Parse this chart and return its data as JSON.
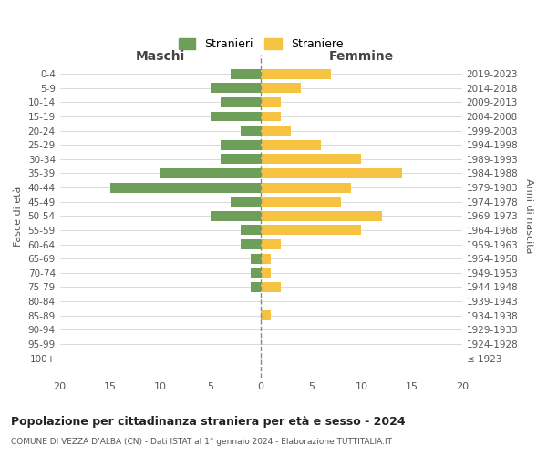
{
  "age_groups": [
    "0-4",
    "5-9",
    "10-14",
    "15-19",
    "20-24",
    "25-29",
    "30-34",
    "35-39",
    "40-44",
    "45-49",
    "50-54",
    "55-59",
    "60-64",
    "65-69",
    "70-74",
    "75-79",
    "80-84",
    "85-89",
    "90-94",
    "95-99",
    "100+"
  ],
  "birth_years": [
    "2019-2023",
    "2014-2018",
    "2009-2013",
    "2004-2008",
    "1999-2003",
    "1994-1998",
    "1989-1993",
    "1984-1988",
    "1979-1983",
    "1974-1978",
    "1969-1973",
    "1964-1968",
    "1959-1963",
    "1954-1958",
    "1949-1953",
    "1944-1948",
    "1939-1943",
    "1934-1938",
    "1929-1933",
    "1924-1928",
    "≤ 1923"
  ],
  "males": [
    3,
    5,
    4,
    5,
    2,
    4,
    4,
    10,
    15,
    3,
    5,
    2,
    2,
    1,
    1,
    1,
    0,
    0,
    0,
    0,
    0
  ],
  "females": [
    7,
    4,
    2,
    2,
    3,
    6,
    10,
    14,
    9,
    8,
    12,
    10,
    2,
    1,
    1,
    2,
    0,
    1,
    0,
    0,
    0
  ],
  "male_color": "#6d9e5a",
  "female_color": "#f5c242",
  "background_color": "#ffffff",
  "grid_color": "#cccccc",
  "title": "Popolazione per cittadinanza straniera per età e sesso - 2024",
  "subtitle": "COMUNE DI VEZZA D’ALBA (CN) - Dati ISTAT al 1° gennaio 2024 - Elaborazione TUTTITALIA.IT",
  "xlabel_left": "Maschi",
  "xlabel_right": "Femmine",
  "ylabel_left": "Fasce di età",
  "ylabel_right": "Anni di nascita",
  "legend_male": "Stranieri",
  "legend_female": "Straniere",
  "xlim": 20,
  "bar_height": 0.7
}
